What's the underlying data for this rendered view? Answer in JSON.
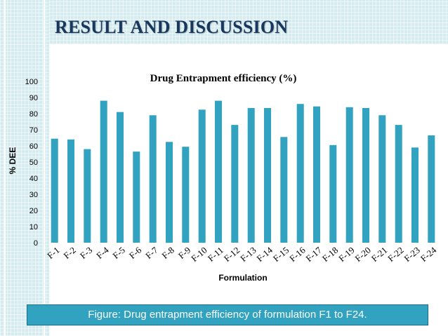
{
  "slide": {
    "title": "RESULT AND DISCUSSION",
    "caption": "Figure:  Drug entrapment efficiency of formulation F1 to F24."
  },
  "colors": {
    "bar": "#31a2bf",
    "title": "#17375e",
    "accent_band": "#d4ecef"
  },
  "chart_data": {
    "type": "bar",
    "title": "Drug Entrapment efficiency (%)",
    "xlabel": "Formulation",
    "ylabel": "% DEE",
    "ylim": [
      0,
      100
    ],
    "yticks": [
      0,
      10,
      20,
      30,
      40,
      50,
      60,
      70,
      80,
      90,
      100
    ],
    "grid": false,
    "legend": "none",
    "categories": [
      "F-1",
      "F-2",
      "F-3",
      "F-4",
      "F-5",
      "F-6",
      "F-7",
      "F-8",
      "F-9",
      "F-10",
      "F-11",
      "F-12",
      "F-13",
      "F-14",
      "F-15",
      "F-16",
      "F-17",
      "F-18",
      "F-19",
      "F-20",
      "F-21",
      "F-22",
      "F-23",
      "F-24"
    ],
    "values": [
      64.5,
      64,
      58,
      88,
      81,
      56.5,
      79,
      62.5,
      59.5,
      82.5,
      88,
      73,
      83.5,
      83.5,
      65.5,
      86,
      84.5,
      60.5,
      84,
      83.5,
      79,
      73,
      59,
      66.5
    ]
  }
}
